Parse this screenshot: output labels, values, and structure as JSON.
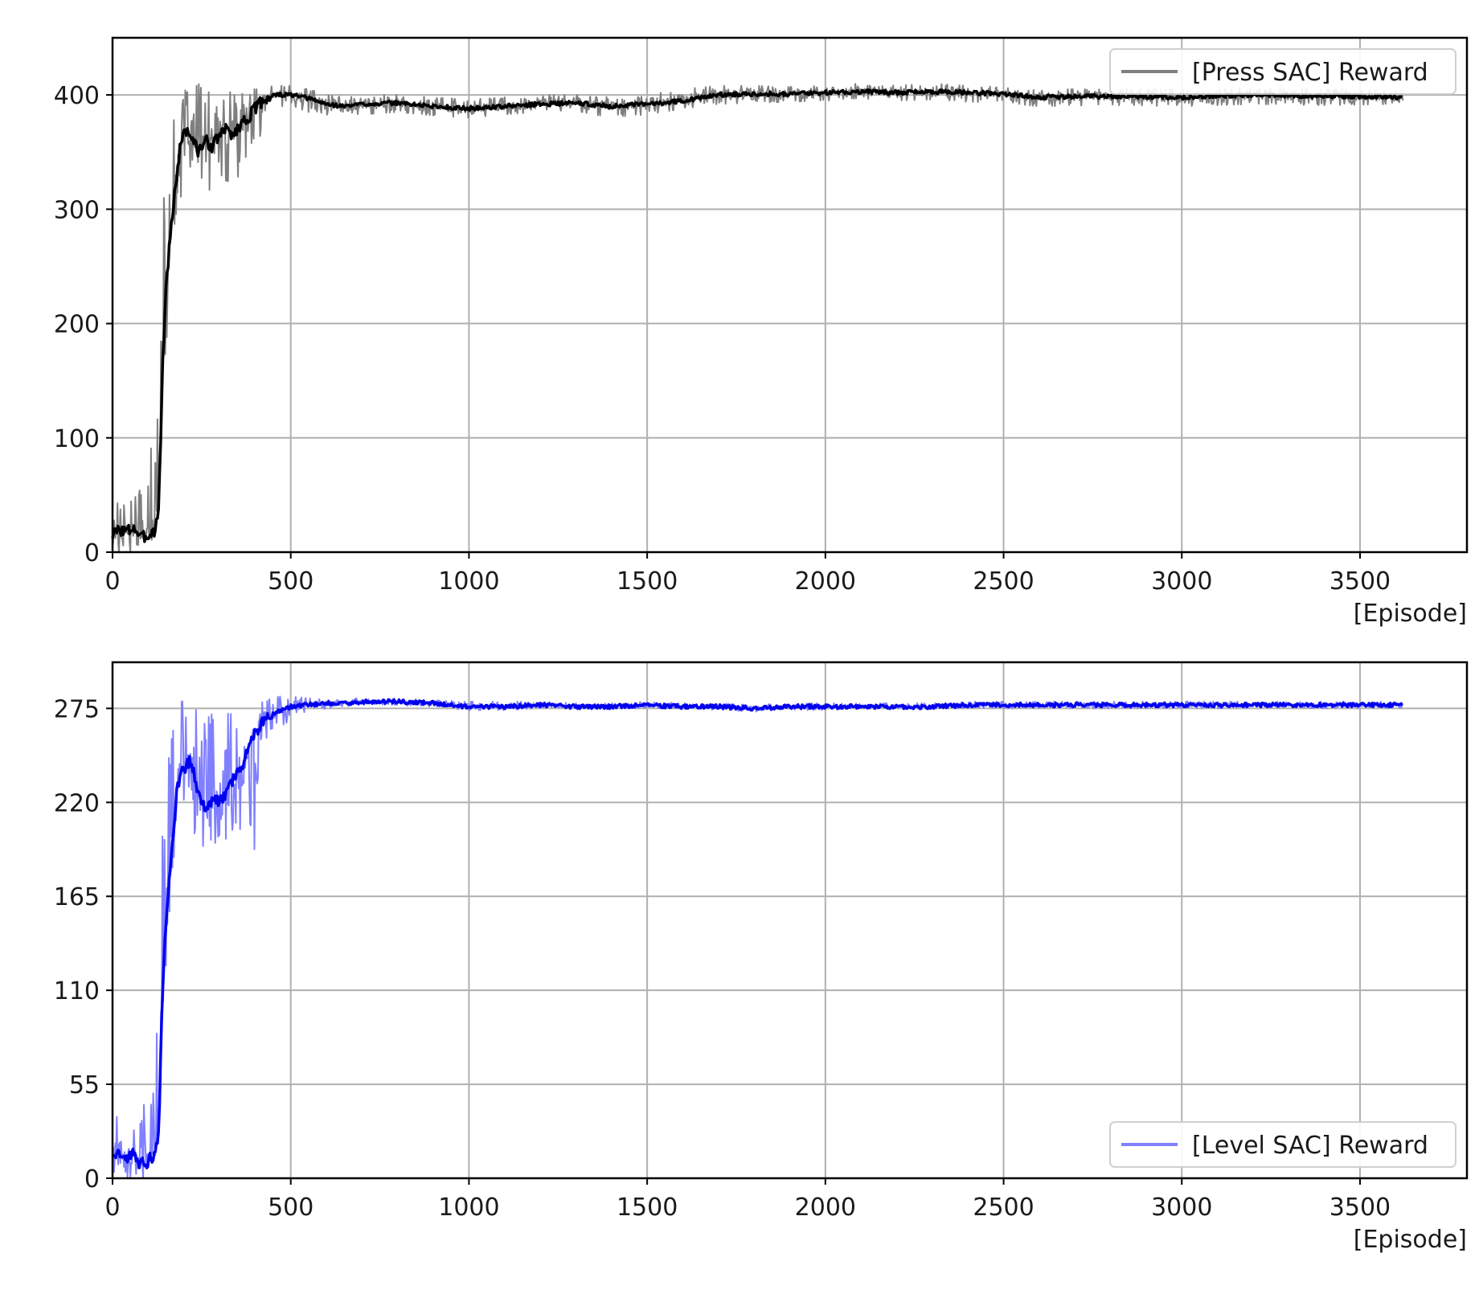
{
  "chart_data": [
    {
      "type": "line",
      "xlabel": "[Episode]",
      "ylabel": "",
      "xlim": [
        0,
        3800
      ],
      "ylim": [
        0,
        450
      ],
      "xticks": [
        0,
        500,
        1000,
        1500,
        2000,
        2500,
        3000,
        3500
      ],
      "yticks": [
        0,
        100,
        200,
        300,
        400
      ],
      "grid": true,
      "legend_position": "top-right",
      "raw_color": "#7f7f7f",
      "smooth_color": "#000000",
      "legend_color": "#7f7f7f",
      "series": [
        {
          "name": "[Press SAC] Reward",
          "x": [
            0,
            20,
            40,
            60,
            80,
            100,
            120,
            130,
            140,
            150,
            160,
            170,
            180,
            190,
            200,
            220,
            240,
            260,
            280,
            300,
            320,
            340,
            360,
            380,
            400,
            420,
            450,
            500,
            550,
            600,
            650,
            700,
            800,
            900,
            1000,
            1100,
            1200,
            1300,
            1400,
            1500,
            1600,
            1700,
            1800,
            1900,
            2000,
            2100,
            2200,
            2300,
            2400,
            2500,
            2600,
            2800,
            3000,
            3200,
            3400,
            3620
          ],
          "smoothed": [
            15,
            20,
            18,
            22,
            12,
            15,
            20,
            40,
            160,
            230,
            270,
            300,
            330,
            355,
            370,
            365,
            350,
            360,
            355,
            365,
            370,
            365,
            375,
            380,
            388,
            395,
            400,
            400,
            397,
            392,
            390,
            392,
            393,
            390,
            388,
            390,
            392,
            393,
            390,
            392,
            395,
            400,
            401,
            401,
            402,
            403,
            402,
            403,
            402,
            401,
            398,
            399,
            398,
            400,
            399,
            398
          ],
          "raw_band": [
            [
              0,
              70
            ],
            [
              0,
              60
            ],
            [
              0,
              60
            ],
            [
              0,
              60
            ],
            [
              0,
              55
            ],
            [
              0,
              80
            ],
            [
              0,
              120
            ],
            [
              30,
              260
            ],
            [
              100,
              290
            ],
            [
              180,
              340
            ],
            [
              220,
              360
            ],
            [
              260,
              375
            ],
            [
              290,
              390
            ],
            [
              310,
              400
            ],
            [
              315,
              405
            ],
            [
              315,
              400
            ],
            [
              310,
              410
            ],
            [
              320,
              405
            ],
            [
              315,
              400
            ],
            [
              325,
              400
            ],
            [
              325,
              405
            ],
            [
              320,
              400
            ],
            [
              330,
              400
            ],
            [
              335,
              405
            ],
            [
              315,
              405
            ],
            [
              385,
              405
            ],
            [
              390,
              408
            ],
            [
              390,
              408
            ],
            [
              385,
              405
            ],
            [
              380,
              400
            ],
            [
              380,
              398
            ],
            [
              383,
              400
            ],
            [
              385,
              400
            ],
            [
              382,
              398
            ],
            [
              380,
              396
            ],
            [
              383,
              398
            ],
            [
              385,
              400
            ],
            [
              386,
              400
            ],
            [
              380,
              398
            ],
            [
              383,
              400
            ],
            [
              388,
              405
            ],
            [
              392,
              408
            ],
            [
              393,
              408
            ],
            [
              394,
              407
            ],
            [
              395,
              408
            ],
            [
              396,
              410
            ],
            [
              395,
              408
            ],
            [
              396,
              410
            ],
            [
              394,
              408
            ],
            [
              393,
              408
            ],
            [
              390,
              405
            ],
            [
              391,
              405
            ],
            [
              390,
              405
            ],
            [
              392,
              406
            ],
            [
              391,
              405
            ],
            [
              392,
              404
            ]
          ]
        }
      ]
    },
    {
      "type": "line",
      "xlabel": "[Episode]",
      "ylabel": "",
      "xlim": [
        0,
        3800
      ],
      "ylim": [
        0,
        302
      ],
      "xticks": [
        0,
        500,
        1000,
        1500,
        2000,
        2500,
        3000,
        3500
      ],
      "yticks": [
        0,
        55,
        110,
        165,
        220,
        275
      ],
      "grid": true,
      "legend_position": "bottom-right",
      "raw_color": "#8080ff",
      "smooth_color": "#0000ee",
      "legend_color": "#8080ff",
      "series": [
        {
          "name": "[Level SAC] Reward",
          "x": [
            0,
            20,
            40,
            60,
            80,
            100,
            120,
            130,
            140,
            150,
            160,
            170,
            180,
            190,
            200,
            220,
            240,
            260,
            280,
            300,
            320,
            340,
            360,
            380,
            400,
            420,
            450,
            500,
            550,
            600,
            650,
            700,
            800,
            900,
            1000,
            1100,
            1200,
            1300,
            1400,
            1500,
            1600,
            1700,
            1800,
            1900,
            2000,
            2100,
            2200,
            2300,
            2400,
            2500,
            2600,
            2800,
            3000,
            3200,
            3400,
            3620
          ],
          "smoothed": [
            10,
            15,
            12,
            14,
            8,
            10,
            15,
            30,
            110,
            150,
            175,
            200,
            225,
            235,
            240,
            245,
            225,
            215,
            222,
            220,
            225,
            235,
            240,
            250,
            260,
            268,
            272,
            276,
            277,
            278,
            278,
            279,
            279,
            278,
            276,
            276,
            277,
            276,
            276,
            277,
            276,
            276,
            275,
            276,
            276,
            276,
            276,
            276,
            277,
            277,
            277,
            277,
            277,
            277,
            277,
            277
          ],
          "raw_band": [
            [
              0,
              45
            ],
            [
              0,
              40
            ],
            [
              0,
              40
            ],
            [
              0,
              40
            ],
            [
              0,
              35
            ],
            [
              0,
              55
            ],
            [
              0,
              80
            ],
            [
              20,
              170
            ],
            [
              70,
              200
            ],
            [
              120,
              230
            ],
            [
              150,
              250
            ],
            [
              170,
              262
            ],
            [
              185,
              272
            ],
            [
              192,
              278
            ],
            [
              195,
              280
            ],
            [
              195,
              272
            ],
            [
              190,
              275
            ],
            [
              188,
              268
            ],
            [
              192,
              272
            ],
            [
              195,
              270
            ],
            [
              196,
              272
            ],
            [
              198,
              272
            ],
            [
              205,
              272
            ],
            [
              215,
              275
            ],
            [
              190,
              278
            ],
            [
              255,
              280
            ],
            [
              262,
              282
            ],
            [
              268,
              282
            ],
            [
              270,
              281
            ],
            [
              275,
              281
            ],
            [
              276,
              281
            ],
            [
              277,
              281
            ],
            [
              277,
              281
            ],
            [
              276,
              280
            ],
            [
              274,
              279
            ],
            [
              274,
              279
            ],
            [
              275,
              279
            ],
            [
              275,
              278
            ],
            [
              275,
              278
            ],
            [
              275,
              279
            ],
            [
              275,
              278
            ],
            [
              274,
              278
            ],
            [
              273,
              277
            ],
            [
              274,
              278
            ],
            [
              274,
              278
            ],
            [
              275,
              278
            ],
            [
              275,
              278
            ],
            [
              275,
              278
            ],
            [
              275,
              279
            ],
            [
              275,
              279
            ],
            [
              275,
              279
            ],
            [
              275,
              279
            ],
            [
              275,
              279
            ],
            [
              275,
              279
            ],
            [
              275,
              279
            ],
            [
              275,
              279
            ]
          ]
        }
      ]
    }
  ]
}
